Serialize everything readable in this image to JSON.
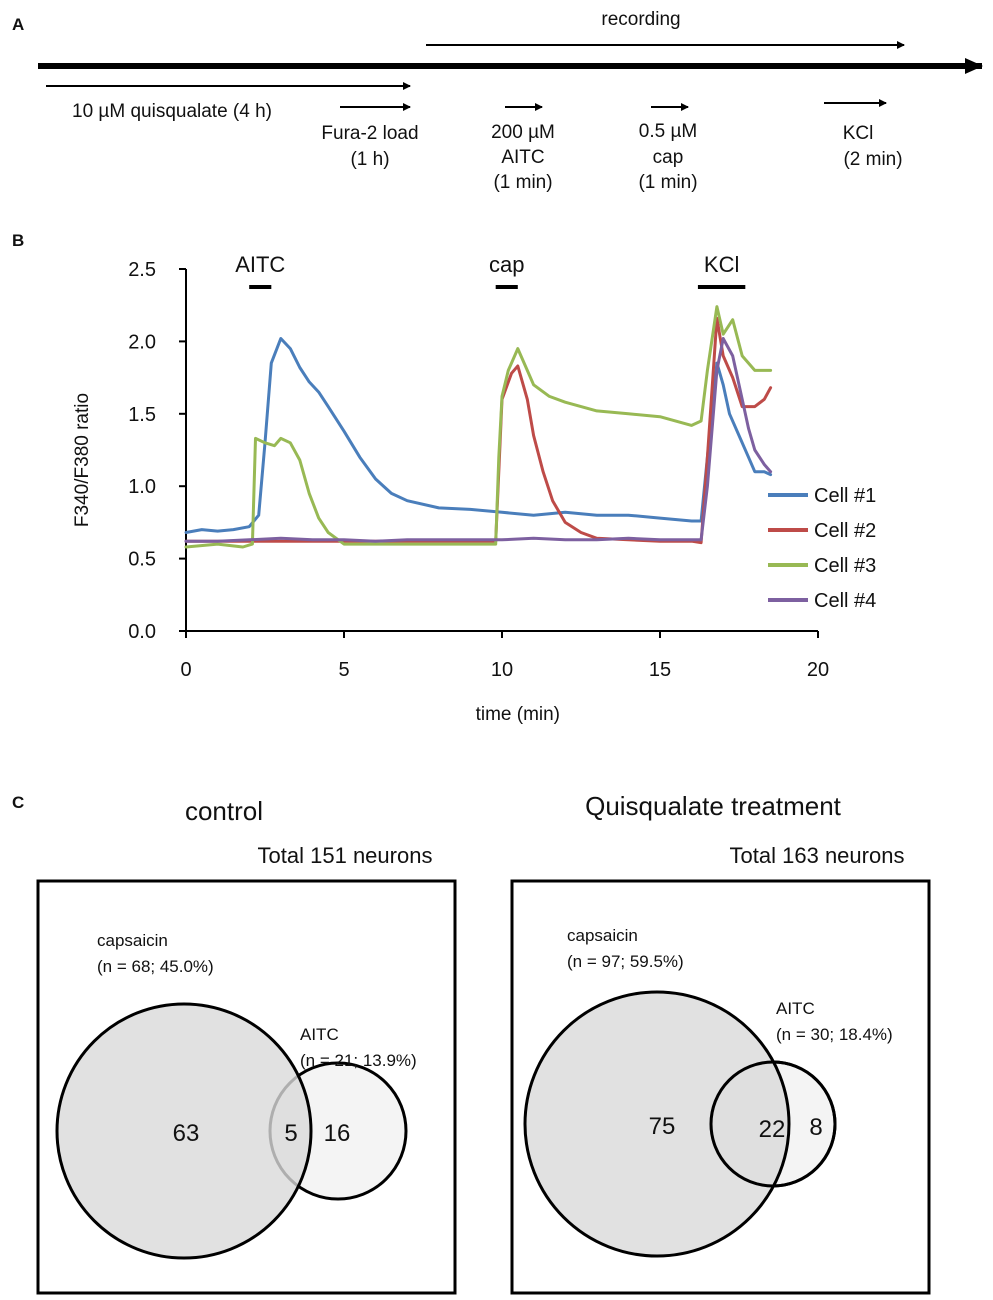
{
  "panels": {
    "a": "A",
    "b": "B",
    "c": "C"
  },
  "timeline": {
    "recording": "recording",
    "quisqualate": "10 µM  quisqualate (4   h)",
    "fura_line1": "Fura-2 load",
    "fura_line2": "(1 h)",
    "aitc_line1": "200 µM",
    "aitc_line2": "AITC",
    "aitc_line3": "(1 min)",
    "cap_line1": "0.5 µM",
    "cap_line2": "cap",
    "cap_line3": "(1 min)",
    "kcl_line1": "KCl",
    "kcl_line2": "(2 min)"
  },
  "chart_data": {
    "type": "line",
    "title": "",
    "xlabel": "time (min)",
    "ylabel": "F340/F380 ratio",
    "xlim": [
      0,
      20
    ],
    "ylim": [
      0,
      2.5
    ],
    "xticks": [
      0,
      5,
      10,
      15,
      20
    ],
    "yticks": [
      0.0,
      0.5,
      1.0,
      1.5,
      2.0,
      2.5
    ],
    "xtick_labels": [
      "0",
      "5",
      "10",
      "15",
      "20"
    ],
    "ytick_labels": [
      "0.0",
      "0.5",
      "1.0",
      "1.5",
      "2.0",
      "2.5"
    ],
    "stimulus_bars": [
      {
        "label": "AITC",
        "start": 2.0,
        "end": 2.7
      },
      {
        "label": "cap",
        "start": 9.8,
        "end": 10.5
      },
      {
        "label": "KCl",
        "start": 16.2,
        "end": 17.7
      }
    ],
    "legend_position": "right",
    "series": [
      {
        "name": "Cell #1",
        "color": "#4a7ebb",
        "x": [
          0,
          0.5,
          1,
          1.5,
          2,
          2.3,
          2.5,
          2.7,
          3,
          3.3,
          3.6,
          3.9,
          4.2,
          4.5,
          5,
          5.5,
          6,
          6.5,
          7,
          8,
          9,
          10,
          11,
          12,
          13,
          14,
          15,
          16,
          16.3,
          16.5,
          16.8,
          17,
          17.2,
          17.5,
          17.8,
          18,
          18.3,
          18.5
        ],
        "y": [
          0.68,
          0.7,
          0.69,
          0.7,
          0.72,
          0.8,
          1.3,
          1.85,
          2.02,
          1.95,
          1.82,
          1.72,
          1.65,
          1.55,
          1.38,
          1.2,
          1.05,
          0.95,
          0.9,
          0.85,
          0.84,
          0.82,
          0.8,
          0.82,
          0.8,
          0.8,
          0.78,
          0.76,
          0.76,
          1.2,
          1.85,
          1.7,
          1.5,
          1.35,
          1.2,
          1.1,
          1.1,
          1.08
        ]
      },
      {
        "name": "Cell #2",
        "color": "#be4b48",
        "x": [
          0,
          1,
          2,
          3,
          4,
          5,
          6,
          7,
          8,
          9,
          9.8,
          10,
          10.3,
          10.5,
          10.8,
          11,
          11.3,
          11.6,
          12,
          12.5,
          13,
          14,
          15,
          16,
          16.3,
          16.5,
          16.8,
          17,
          17.3,
          17.6,
          18,
          18.3,
          18.5
        ],
        "y": [
          0.62,
          0.62,
          0.62,
          0.62,
          0.62,
          0.62,
          0.62,
          0.62,
          0.62,
          0.62,
          0.62,
          1.6,
          1.78,
          1.83,
          1.6,
          1.35,
          1.1,
          0.9,
          0.75,
          0.68,
          0.64,
          0.63,
          0.62,
          0.62,
          0.61,
          1.2,
          2.16,
          1.9,
          1.75,
          1.55,
          1.55,
          1.6,
          1.68
        ]
      },
      {
        "name": "Cell #3",
        "color": "#98b954",
        "x": [
          0,
          1,
          1.8,
          2.1,
          2.2,
          2.5,
          2.8,
          3,
          3.3,
          3.6,
          3.9,
          4.2,
          4.5,
          5,
          6,
          7,
          8,
          9,
          9.8,
          9.9,
          10,
          10.2,
          10.5,
          10.8,
          11,
          11.5,
          12,
          12.5,
          13,
          14,
          15,
          16,
          16.3,
          16.5,
          16.8,
          17,
          17.3,
          17.6,
          18,
          18.5
        ],
        "y": [
          0.58,
          0.6,
          0.58,
          0.6,
          1.33,
          1.3,
          1.28,
          1.33,
          1.3,
          1.18,
          0.95,
          0.78,
          0.68,
          0.6,
          0.6,
          0.6,
          0.6,
          0.6,
          0.6,
          1.2,
          1.62,
          1.8,
          1.95,
          1.8,
          1.7,
          1.62,
          1.58,
          1.55,
          1.52,
          1.5,
          1.48,
          1.42,
          1.45,
          1.8,
          2.24,
          2.05,
          2.15,
          1.9,
          1.8,
          1.8
        ]
      },
      {
        "name": "Cell #4",
        "color": "#7d60a0",
        "x": [
          0,
          1,
          2,
          3,
          4,
          5,
          6,
          7,
          8,
          9,
          10,
          11,
          12,
          13,
          14,
          15,
          16,
          16.3,
          16.5,
          16.8,
          17,
          17.3,
          17.6,
          17.8,
          18,
          18.3,
          18.5
        ],
        "y": [
          0.62,
          0.62,
          0.63,
          0.64,
          0.63,
          0.63,
          0.62,
          0.63,
          0.63,
          0.63,
          0.63,
          0.64,
          0.63,
          0.63,
          0.64,
          0.63,
          0.63,
          0.63,
          1.0,
          1.8,
          2.02,
          1.9,
          1.6,
          1.4,
          1.25,
          1.15,
          1.1
        ]
      }
    ]
  },
  "venn": {
    "control": {
      "title": "control",
      "total": "Total 151 neurons",
      "cap_label_line1": "capsaicin",
      "cap_label_line2": "(n = 68; 45.0%)",
      "aitc_label_line1": "AITC",
      "aitc_label_line2": "(n = 21; 13.9%)",
      "count_cap_only": "63",
      "count_both": "5",
      "count_aitc_only": "16"
    },
    "quisqualate": {
      "title": "Quisqualate treatment",
      "total": "Total 163 neurons",
      "cap_label_line1": "capsaicin",
      "cap_label_line2": "(n = 97; 59.5%)",
      "aitc_label_line1": "AITC",
      "aitc_label_line2": "(n = 30; 18.4%)",
      "count_cap_only": "75",
      "count_both": "22",
      "count_aitc_only": "8"
    }
  }
}
